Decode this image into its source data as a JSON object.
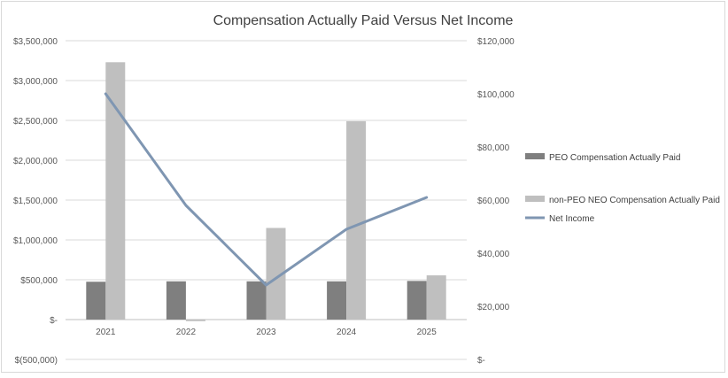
{
  "chart_data": {
    "type": "bar",
    "title": "Compensation Actually Paid Versus Net Income",
    "categories": [
      "2021",
      "2022",
      "2023",
      "2024",
      "2025"
    ],
    "y_left": {
      "range": [
        -500000,
        3500000
      ],
      "ticks": [
        -500000,
        0,
        500000,
        1000000,
        1500000,
        2000000,
        2500000,
        3000000,
        3500000
      ],
      "tick_labels": [
        "$(500,000)",
        "$-",
        "$500,000",
        "$1,000,000",
        "$1,500,000",
        "$2,000,000",
        "$2,500,000",
        "$3,000,000",
        "$3,500,000"
      ]
    },
    "y_right": {
      "range": [
        0,
        120000
      ],
      "ticks": [
        0,
        20000,
        40000,
        60000,
        80000,
        100000,
        120000
      ],
      "tick_labels": [
        "$-",
        "$20,000",
        "$40,000",
        "$60,000",
        "$80,000",
        "$100,000",
        "$120,000"
      ]
    },
    "series": [
      {
        "name": "PEO Compensation Actually Paid",
        "type": "bar",
        "axis": "left",
        "color": "#7f7f7f",
        "values": [
          475000,
          480000,
          480000,
          480000,
          485000
        ]
      },
      {
        "name": "non-PEO NEO Compensation Actually Paid",
        "type": "bar",
        "axis": "left",
        "color": "#bfbfbf",
        "values": [
          3230000,
          -20000,
          1150000,
          2490000,
          555000
        ]
      },
      {
        "name": "Net Income",
        "type": "line",
        "axis": "right",
        "color": "#7f96b2",
        "values": [
          100000,
          58000,
          28000,
          49000,
          61000
        ]
      }
    ],
    "grid": true,
    "legend_position": "right"
  }
}
